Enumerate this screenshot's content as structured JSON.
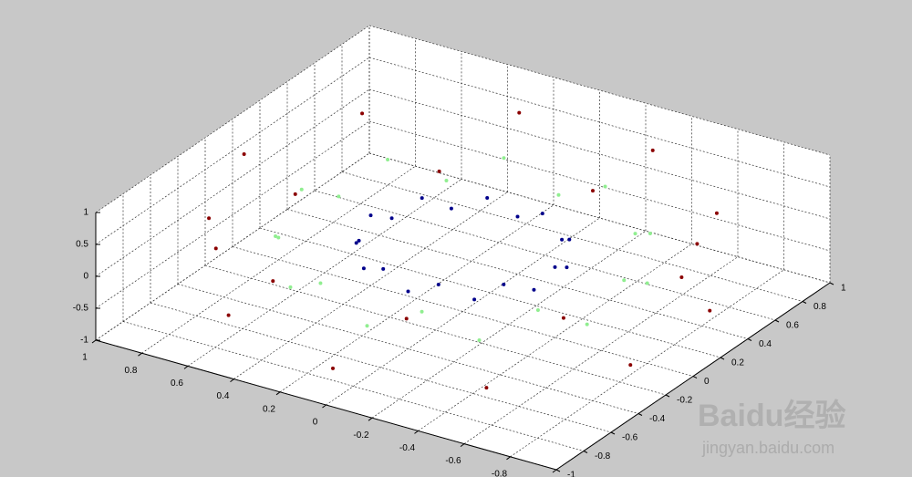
{
  "chart_data": {
    "type": "scatter3",
    "xlim": [
      -1,
      1
    ],
    "ylim": [
      -1,
      1
    ],
    "zlim": [
      -1,
      1
    ],
    "xticks": [
      -1,
      -0.8,
      -0.6,
      -0.4,
      -0.2,
      0,
      0.2,
      0.4,
      0.6,
      0.8,
      1
    ],
    "yticks": [
      -1,
      -0.8,
      -0.6,
      -0.4,
      -0.2,
      0,
      0.2,
      0.4,
      0.6,
      0.8,
      1
    ],
    "zticks": [
      -1,
      -0.5,
      0,
      0.5,
      1
    ],
    "grid": true,
    "series": [
      {
        "color": "#8b0000",
        "x": [
          0.95,
          0.9,
          0.77,
          0.56,
          0.29,
          0,
          -0.29,
          -0.56,
          -0.77,
          -0.9,
          -0.95,
          -0.9,
          -0.77,
          -0.56,
          -0.29,
          0,
          0.29,
          0.56,
          0.77,
          0.9
        ],
        "y": [
          0,
          0.29,
          0.56,
          0.77,
          0.9,
          0.95,
          0.9,
          0.77,
          0.56,
          0.29,
          0,
          -0.29,
          -0.56,
          -0.77,
          -0.9,
          -0.95,
          -0.9,
          -0.77,
          -0.56,
          -0.29
        ],
        "z": [
          0.5,
          -0.5,
          0.5,
          -0.5,
          0.5,
          -0.5,
          0.5,
          -0.5,
          0.5,
          -0.5,
          0.5,
          -0.5,
          0.5,
          -0.5,
          0.5,
          -0.5,
          0.5,
          -0.5,
          0.5,
          -0.5
        ]
      },
      {
        "color": "#90ee90",
        "x": [
          0.7,
          0.67,
          0.57,
          0.41,
          0.22,
          0,
          -0.22,
          -0.41,
          -0.57,
          -0.67,
          -0.7,
          -0.67,
          -0.57,
          -0.41,
          -0.22,
          0,
          0.22,
          0.41,
          0.57,
          0.67
        ],
        "y": [
          0,
          0.22,
          0.41,
          0.57,
          0.67,
          0.7,
          0.67,
          0.57,
          0.41,
          0.22,
          0,
          -0.22,
          -0.41,
          -0.57,
          -0.67,
          -0.7,
          -0.67,
          -0.57,
          -0.41,
          -0.22
        ],
        "z": [
          0.2,
          -0.2,
          0.2,
          -0.2,
          0.2,
          -0.2,
          0.2,
          -0.2,
          0.2,
          -0.2,
          0.2,
          -0.2,
          0.2,
          -0.2,
          0.2,
          -0.2,
          0.2,
          -0.2,
          0.2,
          -0.2
        ]
      },
      {
        "color": "#00008b",
        "x": [
          0.4,
          0.38,
          0.32,
          0.24,
          0.12,
          0,
          -0.12,
          -0.24,
          -0.32,
          -0.38,
          -0.4,
          -0.38,
          -0.32,
          -0.24,
          -0.12,
          0,
          0.12,
          0.24,
          0.32,
          0.38
        ],
        "y": [
          0,
          0.12,
          0.24,
          0.32,
          0.38,
          0.4,
          0.38,
          0.32,
          0.24,
          0.12,
          0,
          -0.12,
          -0.24,
          -0.32,
          -0.38,
          -0.4,
          -0.38,
          -0.32,
          -0.24,
          -0.12
        ],
        "z": [
          0.1,
          -0.1,
          0.1,
          -0.1,
          0.1,
          -0.1,
          0.1,
          -0.1,
          0.1,
          -0.1,
          0.1,
          -0.1,
          0.1,
          -0.1,
          0.1,
          -0.1,
          0.1,
          -0.1,
          0.1,
          -0.1
        ]
      }
    ]
  },
  "watermark": {
    "brand": "Baidu经验",
    "url": "jingyan.baidu.com"
  }
}
